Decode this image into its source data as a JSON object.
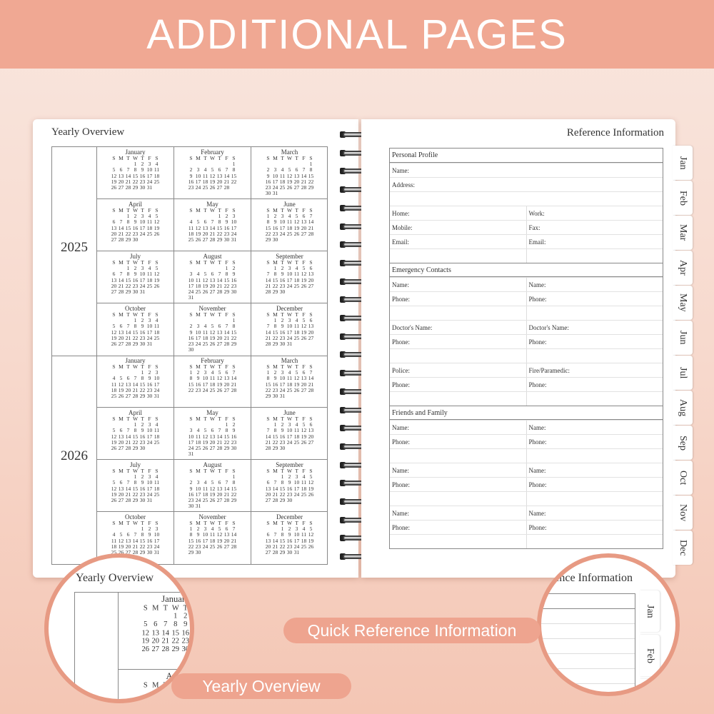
{
  "banner": {
    "title": "ADDITIONAL PAGES"
  },
  "colors": {
    "banner": "#f0a893",
    "accent": "#e79a83",
    "pill": "#eea48f"
  },
  "yearly": {
    "title": "Yearly Overview",
    "weekdays": [
      "S",
      "M",
      "T",
      "W",
      "T",
      "F",
      "S"
    ],
    "years": [
      {
        "year": "2025",
        "months": [
          {
            "name": "January",
            "weeks": [
              ",,,1,2,3,4",
              "5,6,7,8,9,10,11",
              "12,13,14,15,16,17,18",
              "19,20,21,22,23,24,25",
              "26,27,28,29,30,31"
            ]
          },
          {
            "name": "February",
            "weeks": [
              ",,,,,,1",
              "2,3,4,5,6,7,8",
              "9,10,11,12,13,14,15",
              "16,17,18,19,20,21,22",
              "23,24,25,26,27,28"
            ]
          },
          {
            "name": "March",
            "weeks": [
              ",,,,,,1",
              "2,3,4,5,6,7,8",
              "9,10,11,12,13,14,15",
              "16,17,18,19,20,21,22",
              "23,24,25,26,27,28,29",
              "30,31"
            ]
          },
          {
            "name": "April",
            "weeks": [
              ",,1,2,3,4,5",
              "6,7,8,9,10,11,12",
              "13,14,15,16,17,18,19",
              "20,21,22,23,24,25,26",
              "27,28,29,30"
            ]
          },
          {
            "name": "May",
            "weeks": [
              ",,,,1,2,3",
              "4,5,6,7,8,9,10",
              "11,12,13,14,15,16,17",
              "18,19,20,21,22,23,24",
              "25,26,27,28,29,30,31"
            ]
          },
          {
            "name": "June",
            "weeks": [
              "1,2,3,4,5,6,7",
              "8,9,10,11,12,13,14",
              "15,16,17,18,19,20,21",
              "22,23,24,25,26,27,28",
              "29,30"
            ]
          },
          {
            "name": "July",
            "weeks": [
              ",,1,2,3,4,5",
              "6,7,8,9,10,11,12",
              "13,14,15,16,17,18,19",
              "20,21,22,23,24,25,26",
              "27,28,29,30,31"
            ]
          },
          {
            "name": "August",
            "weeks": [
              ",,,,,1,2",
              "3,4,5,6,7,8,9",
              "10,11,12,13,14,15,16",
              "17,18,19,20,21,22,23",
              "24,25,26,27,28,29,30",
              "31"
            ]
          },
          {
            "name": "September",
            "weeks": [
              ",1,2,3,4,5,6",
              "7,8,9,10,11,12,13",
              "14,15,16,17,18,19,20",
              "21,22,23,24,25,26,27",
              "28,29,30"
            ]
          },
          {
            "name": "October",
            "weeks": [
              ",,,1,2,3,4",
              "5,6,7,8,9,10,11",
              "12,13,14,15,16,17,18",
              "19,20,21,22,23,24,25",
              "26,27,28,29,30,31"
            ]
          },
          {
            "name": "November",
            "weeks": [
              ",,,,,,1",
              "2,3,4,5,6,7,8",
              "9,10,11,12,13,14,15",
              "16,17,18,19,20,21,22",
              "23,24,25,26,27,28,29",
              "30"
            ]
          },
          {
            "name": "December",
            "weeks": [
              ",1,2,3,4,5,6",
              "7,8,9,10,11,12,13",
              "14,15,16,17,18,19,20",
              "21,22,23,24,25,26,27",
              "28,29,30,31"
            ]
          }
        ]
      },
      {
        "year": "2026",
        "months": [
          {
            "name": "January",
            "weeks": [
              ",,,,1,2,3",
              "4,5,6,7,8,9,10",
              "11,12,13,14,15,16,17",
              "18,19,20,21,22,23,24",
              "25,26,27,28,29,30,31"
            ]
          },
          {
            "name": "February",
            "weeks": [
              "1,2,3,4,5,6,7",
              "8,9,10,11,12,13,14",
              "15,16,17,18,19,20,21",
              "22,23,24,25,26,27,28"
            ]
          },
          {
            "name": "March",
            "weeks": [
              "1,2,3,4,5,6,7",
              "8,9,10,11,12,13,14",
              "15,16,17,18,19,20,21",
              "22,23,24,25,26,27,28",
              "29,30,31"
            ]
          },
          {
            "name": "April",
            "weeks": [
              ",,,1,2,3,4",
              "5,6,7,8,9,10,11",
              "12,13,14,15,16,17,18",
              "19,20,21,22,23,24,25",
              "26,27,28,29,30"
            ]
          },
          {
            "name": "May",
            "weeks": [
              ",,,,,1,2",
              "3,4,5,6,7,8,9",
              "10,11,12,13,14,15,16",
              "17,18,19,20,21,22,23",
              "24,25,26,27,28,29,30",
              "31"
            ]
          },
          {
            "name": "June",
            "weeks": [
              ",1,2,3,4,5,6",
              "7,8,9,10,11,12,13",
              "14,15,16,17,18,19,20",
              "21,22,23,24,25,26,27",
              "28,29,30"
            ]
          },
          {
            "name": "July",
            "weeks": [
              ",,,1,2,3,4",
              "5,6,7,8,9,10,11",
              "12,13,14,15,16,17,18",
              "19,20,21,22,23,24,25",
              "26,27,28,29,30,31"
            ]
          },
          {
            "name": "August",
            "weeks": [
              ",,,,,,1",
              "2,3,4,5,6,7,8",
              "9,10,11,12,13,14,15",
              "16,17,18,19,20,21,22",
              "23,24,25,26,27,28,29",
              "30,31"
            ]
          },
          {
            "name": "September",
            "weeks": [
              ",,1,2,3,4,5",
              "6,7,8,9,10,11,12",
              "13,14,15,16,17,18,19",
              "20,21,22,23,24,25,26",
              "27,28,29,30"
            ]
          },
          {
            "name": "October",
            "weeks": [
              ",,,,1,2,3",
              "4,5,6,7,8,9,10",
              "11,12,13,14,15,16,17",
              "18,19,20,21,22,23,24",
              "25,26,27,28,29,30,31"
            ]
          },
          {
            "name": "November",
            "weeks": [
              "1,2,3,4,5,6,7",
              "8,9,10,11,12,13,14",
              "15,16,17,18,19,20,21",
              "22,23,24,25,26,27,28",
              "29,30"
            ]
          },
          {
            "name": "December",
            "weeks": [
              ",,1,2,3,4,5",
              "6,7,8,9,10,11,12",
              "13,14,15,16,17,18,19",
              "20,21,22,23,24,25,26",
              "27,28,29,30,31"
            ]
          }
        ]
      }
    ]
  },
  "reference": {
    "title": "Reference Information",
    "rows": [
      {
        "head": "Personal Profile"
      },
      {
        "left": "Name:",
        "full": true
      },
      {
        "left": "Address:",
        "full": true
      },
      {
        "left": "",
        "full": true
      },
      {
        "left": "Home:",
        "right": "Work:"
      },
      {
        "left": "Mobile:",
        "right": "Fax:"
      },
      {
        "left": "Email:",
        "right": "Email:"
      },
      {
        "left": "",
        "right": ""
      },
      {
        "head": "Emergency Contacts"
      },
      {
        "left": "Name:",
        "right": "Name:"
      },
      {
        "left": "Phone:",
        "right": "Phone:"
      },
      {
        "left": "",
        "right": ""
      },
      {
        "left": "Doctor's Name:",
        "right": "Doctor's Name:"
      },
      {
        "left": "Phone:",
        "right": "Phone:"
      },
      {
        "left": "",
        "right": ""
      },
      {
        "left": "Police:",
        "right": "Fire/Paramedic:"
      },
      {
        "left": "Phone:",
        "right": "Phone:"
      },
      {
        "left": "",
        "right": ""
      },
      {
        "head": "Friends and Family"
      },
      {
        "left": "Name:",
        "right": "Name:"
      },
      {
        "left": "Phone:",
        "right": "Phone:"
      },
      {
        "left": "",
        "right": ""
      },
      {
        "left": "Name:",
        "right": "Name:"
      },
      {
        "left": "Phone:",
        "right": "Phone:"
      },
      {
        "left": "",
        "right": ""
      },
      {
        "left": "Name:",
        "right": "Name:"
      },
      {
        "left": "Phone:",
        "right": "Phone:"
      },
      {
        "left": "",
        "right": ""
      }
    ]
  },
  "tabs": [
    "Jan",
    "Feb",
    "Mar",
    "Apr",
    "May",
    "Jun",
    "Jul",
    "Aug",
    "Sep",
    "Oct",
    "Nov",
    "Dec"
  ],
  "callouts": {
    "quick": "Quick Reference Information",
    "yearly": "Yearly Overview"
  }
}
